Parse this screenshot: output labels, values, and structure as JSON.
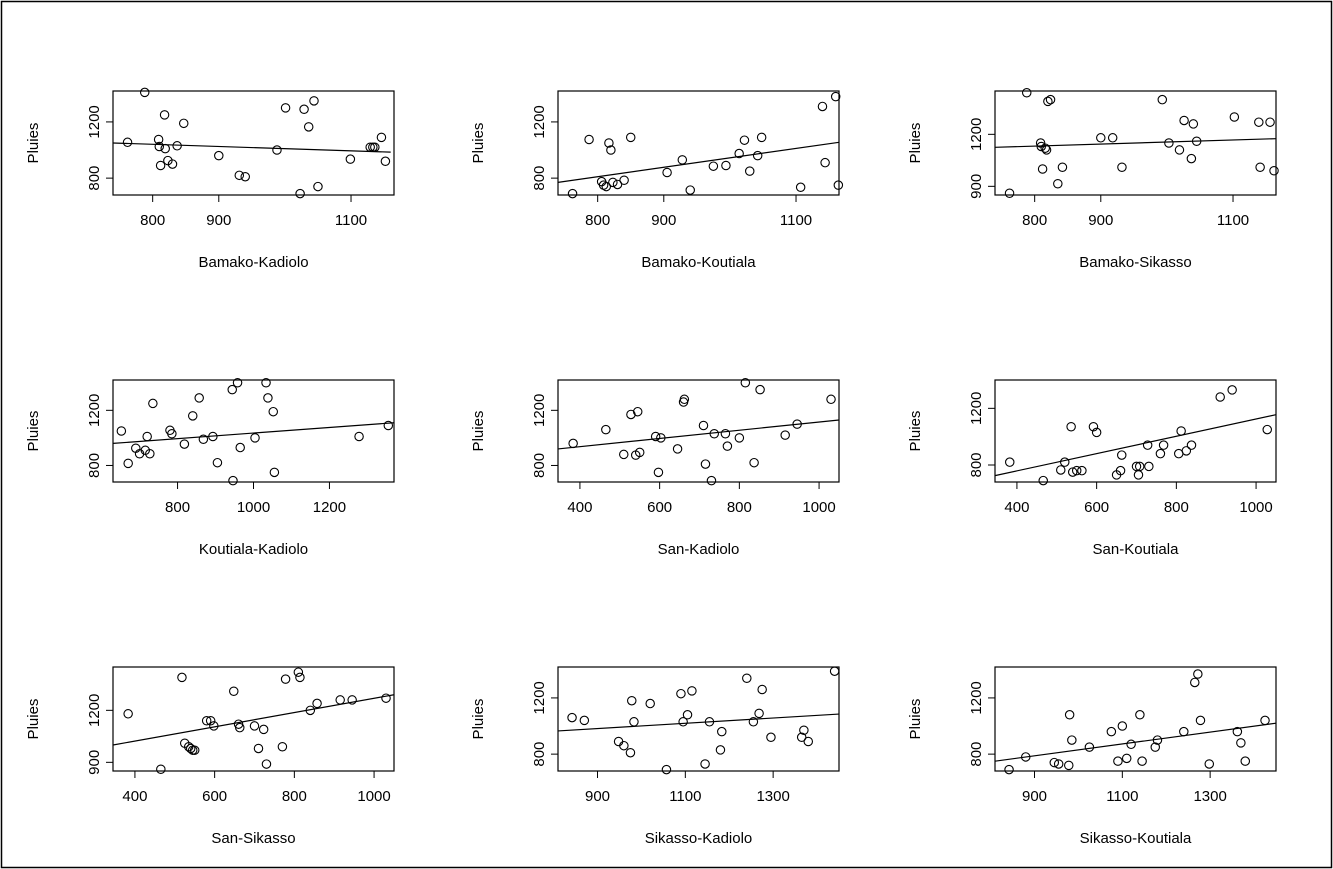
{
  "chart_data": [
    {
      "type": "scatter",
      "xlabel": "Bamako-Kadiolo",
      "ylabel": "Pluies",
      "xlim": [
        740,
        1165
      ],
      "ylim": [
        680,
        1420
      ],
      "xticks": [
        800,
        900,
        1100
      ],
      "yticks": [
        800,
        1200
      ],
      "points": [
        [
          762,
          1055
        ],
        [
          788,
          1410
        ],
        [
          809,
          1075
        ],
        [
          810,
          1025
        ],
        [
          812,
          890
        ],
        [
          818,
          1250
        ],
        [
          819,
          1010
        ],
        [
          823,
          925
        ],
        [
          830,
          900
        ],
        [
          837,
          1030
        ],
        [
          847,
          1190
        ],
        [
          900,
          960
        ],
        [
          931,
          820
        ],
        [
          940,
          810
        ],
        [
          988,
          1000
        ],
        [
          1001,
          1300
        ],
        [
          1023,
          690
        ],
        [
          1029,
          1290
        ],
        [
          1036,
          1165
        ],
        [
          1044,
          1350
        ],
        [
          1050,
          740
        ],
        [
          1099,
          935
        ],
        [
          1129,
          1020
        ],
        [
          1133,
          1020
        ],
        [
          1136,
          1020
        ],
        [
          1146,
          1090
        ],
        [
          1152,
          920
        ]
      ],
      "fit": [
        [
          740,
          1050
        ],
        [
          1160,
          985
        ]
      ]
    },
    {
      "type": "scatter",
      "xlabel": "Bamako-Koutiala",
      "ylabel": "Pluies",
      "xlim": [
        740,
        1165
      ],
      "ylim": [
        680,
        1420
      ],
      "xticks": [
        800,
        900,
        1100
      ],
      "yticks": [
        800,
        1200
      ],
      "points": [
        [
          762,
          690
        ],
        [
          787,
          1075
        ],
        [
          806,
          775
        ],
        [
          809,
          750
        ],
        [
          813,
          740
        ],
        [
          817,
          1050
        ],
        [
          820,
          1000
        ],
        [
          823,
          770
        ],
        [
          830,
          755
        ],
        [
          840,
          785
        ],
        [
          850,
          1090
        ],
        [
          905,
          840
        ],
        [
          928,
          930
        ],
        [
          940,
          715
        ],
        [
          975,
          885
        ],
        [
          994,
          890
        ],
        [
          1014,
          975
        ],
        [
          1022,
          1070
        ],
        [
          1030,
          850
        ],
        [
          1042,
          960
        ],
        [
          1048,
          1090
        ],
        [
          1107,
          735
        ],
        [
          1140,
          1310
        ],
        [
          1144,
          910
        ],
        [
          1160,
          1380
        ],
        [
          1164,
          750
        ]
      ],
      "fit": [
        [
          740,
          770
        ],
        [
          1165,
          1055
        ]
      ]
    },
    {
      "type": "scatter",
      "xlabel": "Bamako-Sikasso",
      "ylabel": "Pluies",
      "xlim": [
        740,
        1165
      ],
      "ylim": [
        850,
        1450
      ],
      "xticks": [
        800,
        900,
        1100
      ],
      "yticks": [
        900,
        1200
      ],
      "points": [
        [
          762,
          860
        ],
        [
          788,
          1440
        ],
        [
          809,
          1150
        ],
        [
          810,
          1130
        ],
        [
          812,
          1000
        ],
        [
          816,
          1120
        ],
        [
          818,
          1110
        ],
        [
          820,
          1390
        ],
        [
          824,
          1400
        ],
        [
          835,
          915
        ],
        [
          842,
          1010
        ],
        [
          900,
          1180
        ],
        [
          918,
          1180
        ],
        [
          932,
          1010
        ],
        [
          993,
          1400
        ],
        [
          1003,
          1150
        ],
        [
          1019,
          1110
        ],
        [
          1026,
          1280
        ],
        [
          1037,
          1060
        ],
        [
          1040,
          1260
        ],
        [
          1045,
          1160
        ],
        [
          1102,
          1300
        ],
        [
          1139,
          1270
        ],
        [
          1141,
          1010
        ],
        [
          1156,
          1270
        ],
        [
          1162,
          990
        ]
      ],
      "fit": [
        [
          740,
          1125
        ],
        [
          1165,
          1175
        ]
      ]
    },
    {
      "type": "scatter",
      "xlabel": "Koutiala-Kadiolo",
      "ylabel": "Pluies",
      "xlim": [
        630,
        1370
      ],
      "ylim": [
        680,
        1420
      ],
      "xticks": [
        800,
        1000,
        1200
      ],
      "yticks": [
        800,
        1200
      ],
      "points": [
        [
          652,
          1050
        ],
        [
          670,
          815
        ],
        [
          690,
          925
        ],
        [
          700,
          885
        ],
        [
          715,
          910
        ],
        [
          720,
          1010
        ],
        [
          727,
          885
        ],
        [
          735,
          1250
        ],
        [
          780,
          1055
        ],
        [
          785,
          1030
        ],
        [
          818,
          955
        ],
        [
          840,
          1160
        ],
        [
          857,
          1290
        ],
        [
          868,
          990
        ],
        [
          893,
          1010
        ],
        [
          905,
          820
        ],
        [
          944,
          1350
        ],
        [
          946,
          690
        ],
        [
          958,
          1400
        ],
        [
          965,
          930
        ],
        [
          1004,
          1000
        ],
        [
          1033,
          1400
        ],
        [
          1038,
          1290
        ],
        [
          1052,
          1190
        ],
        [
          1055,
          750
        ],
        [
          1278,
          1010
        ],
        [
          1355,
          1090
        ]
      ],
      "fit": [
        [
          630,
          960
        ],
        [
          1370,
          1110
        ]
      ]
    },
    {
      "type": "scatter",
      "xlabel": "San-Kadiolo",
      "ylabel": "Pluies",
      "xlim": [
        345,
        1050
      ],
      "ylim": [
        680,
        1420
      ],
      "xticks": [
        400,
        600,
        800,
        1000
      ],
      "yticks": [
        800,
        1200
      ],
      "points": [
        [
          383,
          960
        ],
        [
          465,
          1060
        ],
        [
          510,
          880
        ],
        [
          528,
          1170
        ],
        [
          540,
          875
        ],
        [
          545,
          1190
        ],
        [
          550,
          895
        ],
        [
          590,
          1010
        ],
        [
          597,
          750
        ],
        [
          603,
          1000
        ],
        [
          645,
          920
        ],
        [
          660,
          1260
        ],
        [
          662,
          1280
        ],
        [
          710,
          1090
        ],
        [
          715,
          810
        ],
        [
          730,
          690
        ],
        [
          737,
          1030
        ],
        [
          765,
          1030
        ],
        [
          770,
          940
        ],
        [
          800,
          1000
        ],
        [
          815,
          1400
        ],
        [
          837,
          820
        ],
        [
          852,
          1350
        ],
        [
          915,
          1020
        ],
        [
          945,
          1100
        ],
        [
          1030,
          1280
        ]
      ],
      "fit": [
        [
          345,
          920
        ],
        [
          1050,
          1130
        ]
      ]
    },
    {
      "type": "scatter",
      "xlabel": "San-Koutiala",
      "ylabel": "Pluies",
      "xlim": [
        345,
        1050
      ],
      "ylim": [
        680,
        1400
      ],
      "xticks": [
        400,
        600,
        800,
        1000
      ],
      "yticks": [
        800,
        1200
      ],
      "points": [
        [
          382,
          820
        ],
        [
          466,
          690
        ],
        [
          510,
          765
        ],
        [
          520,
          820
        ],
        [
          536,
          1070
        ],
        [
          540,
          750
        ],
        [
          550,
          760
        ],
        [
          563,
          760
        ],
        [
          592,
          1070
        ],
        [
          600,
          1030
        ],
        [
          650,
          730
        ],
        [
          660,
          760
        ],
        [
          663,
          870
        ],
        [
          700,
          790
        ],
        [
          705,
          730
        ],
        [
          708,
          790
        ],
        [
          728,
          940
        ],
        [
          731,
          790
        ],
        [
          760,
          880
        ],
        [
          768,
          940
        ],
        [
          806,
          880
        ],
        [
          812,
          1040
        ],
        [
          825,
          900
        ],
        [
          838,
          940
        ],
        [
          910,
          1280
        ],
        [
          940,
          1330
        ],
        [
          1028,
          1050
        ]
      ],
      "fit": [
        [
          345,
          725
        ],
        [
          1050,
          1155
        ]
      ]
    },
    {
      "type": "scatter",
      "xlabel": "San-Sikasso",
      "ylabel": "Pluies",
      "xlim": [
        345,
        1050
      ],
      "ylim": [
        850,
        1450
      ],
      "xticks": [
        400,
        600,
        800,
        1000
      ],
      "yticks": [
        900,
        1200
      ],
      "points": [
        [
          383,
          1180
        ],
        [
          465,
          860
        ],
        [
          518,
          1390
        ],
        [
          525,
          1010
        ],
        [
          535,
          990
        ],
        [
          540,
          980
        ],
        [
          545,
          970
        ],
        [
          550,
          970
        ],
        [
          580,
          1140
        ],
        [
          590,
          1140
        ],
        [
          598,
          1110
        ],
        [
          648,
          1310
        ],
        [
          660,
          1120
        ],
        [
          663,
          1100
        ],
        [
          700,
          1110
        ],
        [
          710,
          980
        ],
        [
          723,
          1090
        ],
        [
          730,
          890
        ],
        [
          770,
          990
        ],
        [
          778,
          1380
        ],
        [
          810,
          1420
        ],
        [
          814,
          1390
        ],
        [
          840,
          1200
        ],
        [
          857,
          1240
        ],
        [
          915,
          1260
        ],
        [
          945,
          1260
        ],
        [
          1030,
          1270
        ]
      ],
      "fit": [
        [
          345,
          1000
        ],
        [
          1050,
          1290
        ]
      ]
    },
    {
      "type": "scatter",
      "xlabel": "Sikasso-Kadiolo",
      "ylabel": "Pluies",
      "xlim": [
        810,
        1450
      ],
      "ylim": [
        680,
        1420
      ],
      "xticks": [
        900,
        1100,
        1300
      ],
      "yticks": [
        800,
        1200
      ],
      "points": [
        [
          842,
          1060
        ],
        [
          870,
          1040
        ],
        [
          948,
          890
        ],
        [
          960,
          860
        ],
        [
          975,
          810
        ],
        [
          978,
          1180
        ],
        [
          983,
          1030
        ],
        [
          1020,
          1160
        ],
        [
          1057,
          690
        ],
        [
          1090,
          1230
        ],
        [
          1095,
          1030
        ],
        [
          1105,
          1080
        ],
        [
          1115,
          1250
        ],
        [
          1145,
          730
        ],
        [
          1155,
          1030
        ],
        [
          1180,
          830
        ],
        [
          1183,
          960
        ],
        [
          1240,
          1340
        ],
        [
          1255,
          1030
        ],
        [
          1268,
          1090
        ],
        [
          1275,
          1260
        ],
        [
          1295,
          920
        ],
        [
          1365,
          920
        ],
        [
          1370,
          970
        ],
        [
          1380,
          890
        ],
        [
          1440,
          1390
        ]
      ],
      "fit": [
        [
          810,
          965
        ],
        [
          1450,
          1085
        ]
      ]
    },
    {
      "type": "scatter",
      "xlabel": "Sikasso-Koutiala",
      "ylabel": "Pluies",
      "xlim": [
        810,
        1450
      ],
      "ylim": [
        680,
        1420
      ],
      "xticks": [
        900,
        1100,
        1300
      ],
      "yticks": [
        800,
        1200
      ],
      "points": [
        [
          842,
          690
        ],
        [
          880,
          780
        ],
        [
          945,
          740
        ],
        [
          955,
          730
        ],
        [
          978,
          720
        ],
        [
          980,
          1080
        ],
        [
          985,
          900
        ],
        [
          1025,
          850
        ],
        [
          1075,
          960
        ],
        [
          1090,
          750
        ],
        [
          1100,
          1000
        ],
        [
          1110,
          770
        ],
        [
          1120,
          870
        ],
        [
          1140,
          1080
        ],
        [
          1145,
          750
        ],
        [
          1175,
          850
        ],
        [
          1180,
          900
        ],
        [
          1240,
          960
        ],
        [
          1265,
          1310
        ],
        [
          1272,
          1370
        ],
        [
          1278,
          1040
        ],
        [
          1298,
          730
        ],
        [
          1362,
          960
        ],
        [
          1370,
          880
        ],
        [
          1380,
          750
        ],
        [
          1425,
          1040
        ]
      ],
      "fit": [
        [
          810,
          750
        ],
        [
          1450,
          1020
        ]
      ]
    }
  ]
}
